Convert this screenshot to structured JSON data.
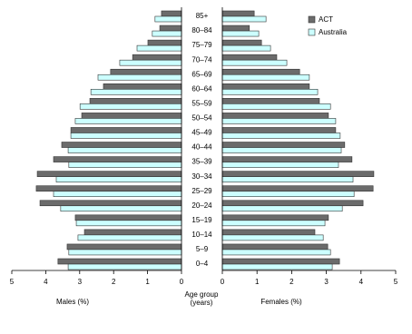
{
  "chart_data": {
    "type": "pyramid",
    "categories": [
      "85+",
      "80–84",
      "75–79",
      "70–74",
      "65–69",
      "60–64",
      "55–59",
      "50–54",
      "45–49",
      "40–44",
      "35–39",
      "30–34",
      "25–29",
      "20–24",
      "15–19",
      "10–14",
      "5–9",
      "0–4"
    ],
    "left_label": "Males (%)",
    "right_label": "Females (%)",
    "center_label_lines": [
      "Age group",
      "(years)"
    ],
    "xlim": [
      0,
      5
    ],
    "xticks": [
      0,
      1,
      2,
      3,
      4,
      5
    ],
    "legend_position": "upper right",
    "series": [
      {
        "name": "ACT",
        "color": "#6b6b6b",
        "male_values": [
          0.59,
          0.64,
          0.99,
          1.44,
          2.09,
          2.3,
          2.7,
          2.94,
          3.26,
          3.53,
          3.77,
          4.25,
          4.28,
          4.17,
          3.13,
          2.86,
          3.37,
          3.64
        ],
        "female_values": [
          0.92,
          0.78,
          1.13,
          1.57,
          2.23,
          2.51,
          2.8,
          3.06,
          3.27,
          3.53,
          3.74,
          4.37,
          4.35,
          4.06,
          3.06,
          2.67,
          3.04,
          3.38
        ]
      },
      {
        "name": "Australia",
        "color": "#ccffff",
        "male_values": [
          0.78,
          0.86,
          1.31,
          1.82,
          2.46,
          2.67,
          2.99,
          3.13,
          3.26,
          3.34,
          3.32,
          3.69,
          3.77,
          3.56,
          3.1,
          3.05,
          3.32,
          3.34
        ],
        "female_values": [
          1.26,
          1.05,
          1.39,
          1.86,
          2.51,
          2.75,
          3.12,
          3.27,
          3.4,
          3.43,
          3.35,
          3.77,
          3.8,
          3.46,
          2.96,
          2.91,
          3.12,
          3.17
        ]
      }
    ]
  }
}
